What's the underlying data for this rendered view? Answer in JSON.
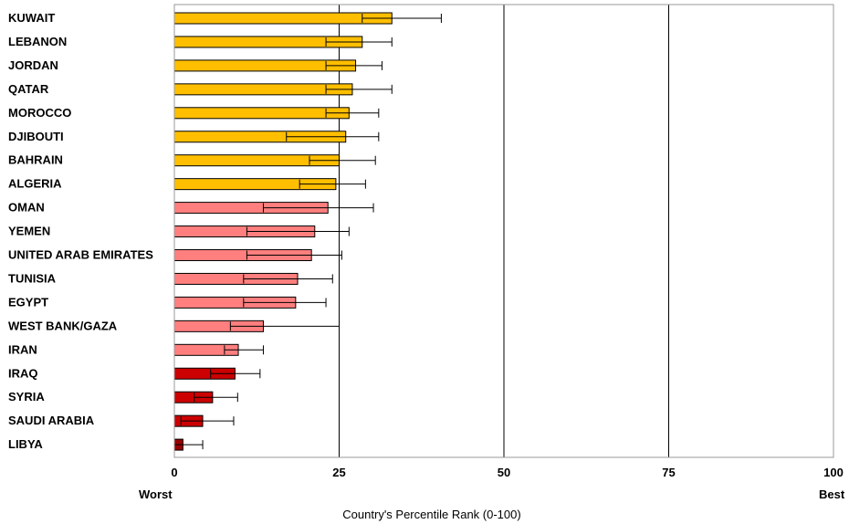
{
  "chart_data": {
    "type": "bar",
    "orientation": "horizontal",
    "xlabel": "Country's Percentile Rank (0-100)",
    "xlim": [
      0,
      100
    ],
    "xticks": [
      0,
      25,
      50,
      75,
      100
    ],
    "worst_label": "Worst",
    "best_label": "Best",
    "gridlines": "vertical-major",
    "colors": {
      "high": "#FFBF00",
      "mid": "#FF7F7F",
      "low": "#CC0000",
      "lowest": "#990000",
      "frame": "#999999"
    },
    "categories": [
      {
        "name": "KUWAIT",
        "value": 33,
        "low": 28.5,
        "high": 40.5,
        "color_group": "high"
      },
      {
        "name": "LEBANON",
        "value": 28.5,
        "low": 23,
        "high": 33,
        "color_group": "high"
      },
      {
        "name": "JORDAN",
        "value": 27.5,
        "low": 23,
        "high": 31.5,
        "color_group": "high"
      },
      {
        "name": "QATAR",
        "value": 27,
        "low": 23,
        "high": 33,
        "color_group": "high"
      },
      {
        "name": "MOROCCO",
        "value": 26.5,
        "low": 23,
        "high": 31,
        "color_group": "high"
      },
      {
        "name": "DJIBOUTI",
        "value": 26,
        "low": 17,
        "high": 31,
        "color_group": "high"
      },
      {
        "name": "BAHRAIN",
        "value": 25,
        "low": 20.5,
        "high": 30.5,
        "color_group": "high"
      },
      {
        "name": "ALGERIA",
        "value": 24.5,
        "low": 19,
        "high": 29,
        "color_group": "high"
      },
      {
        "name": "OMAN",
        "value": 23.3,
        "low": 13.5,
        "high": 30.2,
        "color_group": "mid"
      },
      {
        "name": "YEMEN",
        "value": 21.3,
        "low": 11,
        "high": 26.5,
        "color_group": "mid"
      },
      {
        "name": "UNITED ARAB EMIRATES",
        "value": 20.8,
        "low": 11,
        "high": 25.4,
        "color_group": "mid"
      },
      {
        "name": "TUNISIA",
        "value": 18.7,
        "low": 10.5,
        "high": 24,
        "color_group": "mid"
      },
      {
        "name": "EGYPT",
        "value": 18.4,
        "low": 10.5,
        "high": 23,
        "color_group": "mid"
      },
      {
        "name": "WEST BANK/GAZA",
        "value": 13.5,
        "low": 8.5,
        "high": 25,
        "color_group": "mid"
      },
      {
        "name": "IRAN",
        "value": 9.7,
        "low": 7.6,
        "high": 13.5,
        "color_group": "mid"
      },
      {
        "name": "IRAQ",
        "value": 9.2,
        "low": 5.5,
        "high": 13,
        "color_group": "low"
      },
      {
        "name": "SYRIA",
        "value": 5.8,
        "low": 3,
        "high": 9.6,
        "color_group": "low"
      },
      {
        "name": "SAUDI ARABIA",
        "value": 4.3,
        "low": 1,
        "high": 9,
        "color_group": "low"
      },
      {
        "name": "LIBYA",
        "value": 1.3,
        "low": 0,
        "high": 4.3,
        "color_group": "lowest"
      }
    ]
  }
}
